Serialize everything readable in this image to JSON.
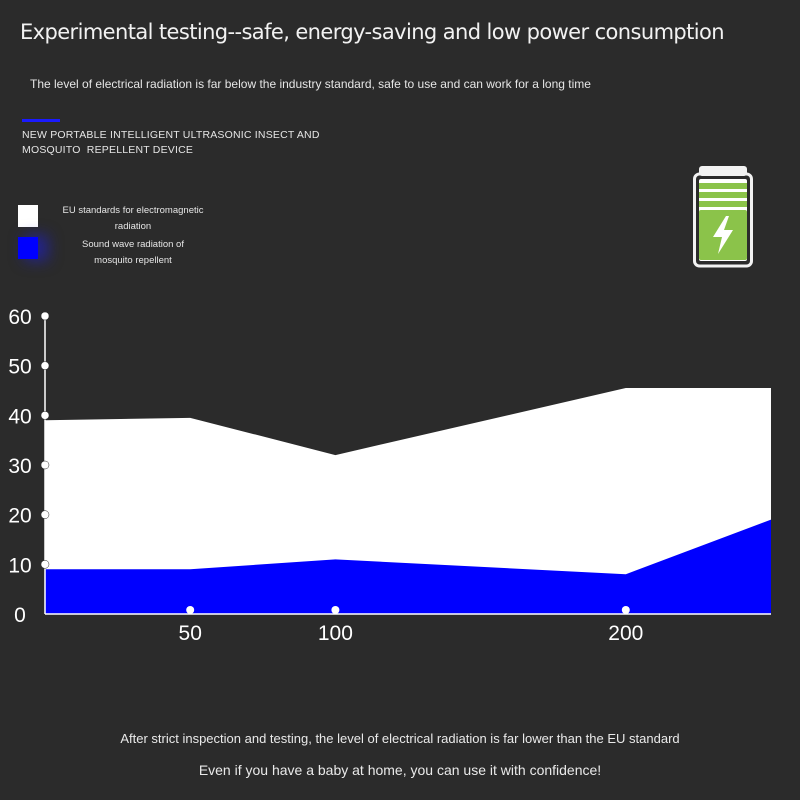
{
  "header": {
    "title": "Experimental testing--safe, energy-saving and low power consumption",
    "subtitle": "The level of electrical radiation is far below the industry standard, safe to use and can work for a long time"
  },
  "product": {
    "name_line1": "NEW PORTABLE INTELLIGENT ULTRASONIC INSECT AND",
    "name_line2": "MOSQUITO  REPELLENT DEVICE",
    "line_color": "#1a1aff"
  },
  "legend": [
    {
      "label_line1": "EU standards for electromagnetic",
      "label_line2": "radiation",
      "color": "#ffffff"
    },
    {
      "label_line1": "Sound wave radiation of",
      "label_line2": "mosquito repellent",
      "color": "#0000ff"
    }
  ],
  "battery": {
    "icon": "battery-charging-icon",
    "accent": "#8bc34a"
  },
  "chart_data": {
    "type": "area",
    "x": [
      0,
      50,
      100,
      200,
      250
    ],
    "x_tick_labels": [
      "50",
      "100",
      "200"
    ],
    "x_tick_values": [
      50,
      100,
      200
    ],
    "y_tick_labels": [
      "0",
      "10",
      "20",
      "30",
      "40",
      "50",
      "60"
    ],
    "y_tick_values": [
      0,
      10,
      20,
      30,
      40,
      50,
      60
    ],
    "ylim": [
      0,
      60
    ],
    "series": [
      {
        "name": "EU standards for electromagnetic radiation",
        "color": "#ffffff",
        "values": [
          39,
          39.5,
          32,
          45.5,
          45.5
        ]
      },
      {
        "name": "Sound wave radiation of mosquito repellent",
        "color": "#0000ff",
        "values": [
          9,
          9,
          11,
          8,
          19
        ]
      }
    ],
    "xlabel": "",
    "ylabel": "",
    "grid": false,
    "legend": "top-left"
  },
  "footer": {
    "line1": "After strict inspection and testing, the level of electrical radiation is far lower than the EU standard",
    "line2": "Even if you have a baby at home, you can use it with confidence!"
  }
}
